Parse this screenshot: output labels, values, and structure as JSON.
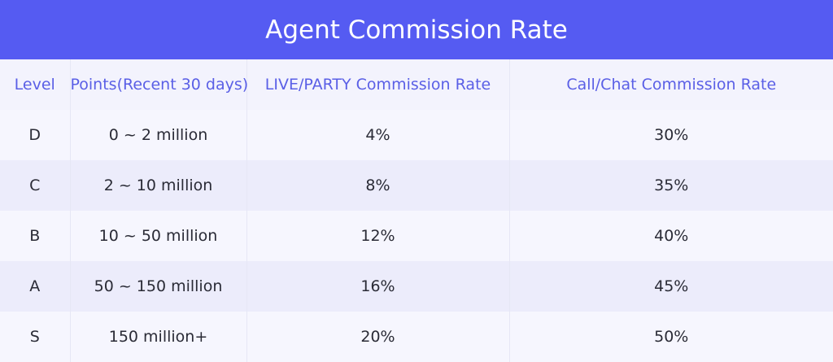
{
  "title": "Agent Commission Rate",
  "colors": {
    "header_bg": "#555bf2",
    "header_text": "#5a5fe6",
    "row_light": "#f6f6fe",
    "row_dark": "#ececfb"
  },
  "table": {
    "headers": [
      "Level",
      "Points(Recent 30 days)",
      "LIVE/PARTY Commission Rate",
      "Call/Chat Commission Rate"
    ],
    "rows": [
      [
        "D",
        "0 ~ 2 million",
        "4%",
        "30%"
      ],
      [
        "C",
        "2 ~ 10 million",
        "8%",
        "35%"
      ],
      [
        "B",
        "10 ~ 50 million",
        "12%",
        "40%"
      ],
      [
        "A",
        "50 ~ 150 million",
        "16%",
        "45%"
      ],
      [
        "S",
        "150 million+",
        "20%",
        "50%"
      ]
    ]
  }
}
